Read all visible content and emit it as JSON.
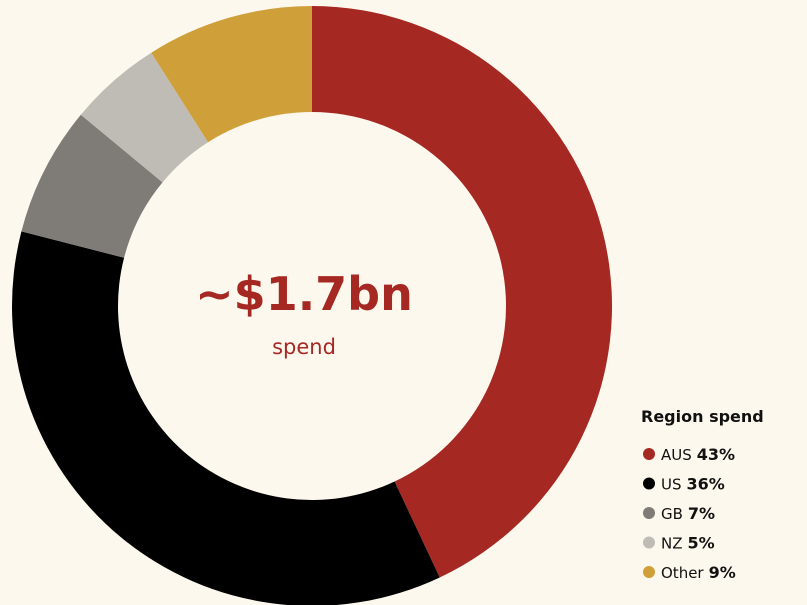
{
  "chart_data": {
    "type": "pie",
    "donut": true,
    "center_title": "~$1.7bn",
    "center_subtitle": "spend",
    "legend_title": "Region spend",
    "categories": [
      "AUS",
      "US",
      "GB",
      "NZ",
      "Other"
    ],
    "values": [
      43,
      36,
      7,
      5,
      9
    ],
    "value_labels": [
      "43%",
      "36%",
      "7%",
      "5%",
      "9%"
    ],
    "colors": [
      "#a52823",
      "#000000",
      "#7f7b77",
      "#bfbcb6",
      "#cfa03a"
    ]
  }
}
